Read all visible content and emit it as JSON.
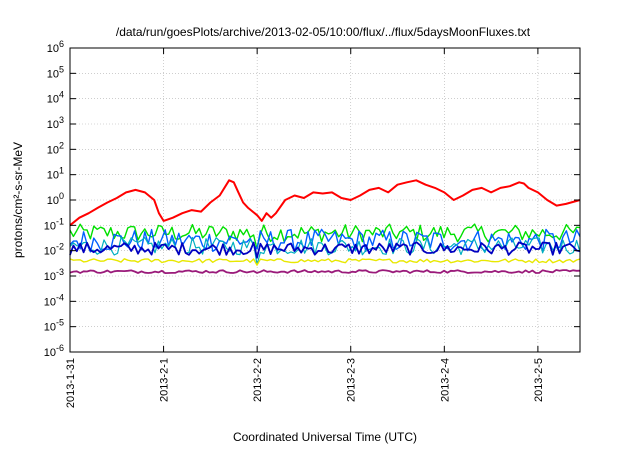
{
  "chart_data": {
    "type": "line",
    "title": "/data/run/goesPlots/archive/2013-02-05/10:00/flux/../flux/5daysMoonFluxes.txt",
    "xlabel": "Coordinated Universal Time (UTC)",
    "ylabel": "protons/cm²-s-sr-MeV",
    "yscale": "log",
    "ylim": [
      1e-06,
      1000000.0
    ],
    "xlim_days": [
      0,
      5.45
    ],
    "x_ticks": [
      {
        "label": "2013-1-31",
        "day": 0
      },
      {
        "label": "2013-2-1",
        "day": 1
      },
      {
        "label": "2013-2-2",
        "day": 2
      },
      {
        "label": "2013-2-3",
        "day": 3
      },
      {
        "label": "2013-2-4",
        "day": 4
      },
      {
        "label": "2013-2-5",
        "day": 5
      }
    ],
    "y_ticks": [
      {
        "value": 1e-06,
        "base": "10",
        "exp": "-6"
      },
      {
        "value": 1e-05,
        "base": "10",
        "exp": "-5"
      },
      {
        "value": 0.0001,
        "base": "10",
        "exp": "-4"
      },
      {
        "value": 0.001,
        "base": "10",
        "exp": "-3"
      },
      {
        "value": 0.01,
        "base": "10",
        "exp": "-2"
      },
      {
        "value": 0.1,
        "base": "10",
        "exp": "-1"
      },
      {
        "value": 1,
        "base": "10",
        "exp": "0"
      },
      {
        "value": 10.0,
        "base": "10",
        "exp": "1"
      },
      {
        "value": 100.0,
        "base": "10",
        "exp": "2"
      },
      {
        "value": 1000.0,
        "base": "10",
        "exp": "3"
      },
      {
        "value": 10000.0,
        "base": "10",
        "exp": "4"
      },
      {
        "value": 100000.0,
        "base": "10",
        "exp": "5"
      },
      {
        "value": 1000000.0,
        "base": "10",
        "exp": "6"
      }
    ],
    "grid": true,
    "legend": "none",
    "series": [
      {
        "color": "#ff0000",
        "width": 2,
        "x": [
          0,
          0.1,
          0.2,
          0.3,
          0.4,
          0.5,
          0.6,
          0.7,
          0.8,
          0.9,
          0.95,
          1.0,
          1.1,
          1.2,
          1.3,
          1.4,
          1.5,
          1.6,
          1.7,
          1.75,
          1.8,
          1.85,
          1.9,
          2.0,
          2.05,
          2.1,
          2.15,
          2.2,
          2.3,
          2.4,
          2.5,
          2.6,
          2.7,
          2.8,
          2.9,
          3.0,
          3.1,
          3.2,
          3.3,
          3.4,
          3.5,
          3.6,
          3.7,
          3.8,
          3.9,
          4.0,
          4.1,
          4.2,
          4.3,
          4.4,
          4.5,
          4.6,
          4.7,
          4.8,
          4.85,
          4.9,
          5.0,
          5.1,
          5.2,
          5.3,
          5.45
        ],
        "y": [
          0.1,
          0.2,
          0.3,
          0.5,
          0.8,
          1.2,
          2.0,
          2.5,
          2.0,
          1.0,
          0.3,
          0.15,
          0.2,
          0.3,
          0.4,
          0.35,
          0.8,
          1.5,
          6.0,
          5.0,
          2.0,
          0.8,
          0.5,
          0.25,
          0.15,
          0.3,
          0.2,
          0.3,
          1.0,
          1.5,
          1.2,
          2.0,
          1.8,
          2.0,
          1.2,
          1.0,
          1.5,
          2.5,
          3.0,
          2.0,
          4.0,
          5.0,
          6.0,
          4.0,
          3.0,
          2.0,
          1.0,
          1.5,
          2.5,
          3.0,
          2.0,
          3.0,
          3.5,
          5.0,
          4.5,
          3.0,
          2.0,
          1.0,
          0.6,
          0.7,
          1.0
        ]
      }
    ],
    "bands": [
      {
        "color": "#00e000",
        "center": 0.05,
        "amp": 0.35,
        "width": 1.4
      },
      {
        "color": "#0060ff",
        "center": 0.025,
        "amp": 0.45,
        "width": 1.4
      },
      {
        "color": "#00b0c0",
        "center": 0.015,
        "amp": 0.35,
        "width": 1.2
      },
      {
        "color": "#0000c0",
        "center": 0.012,
        "amp": 0.25,
        "width": 1.8
      },
      {
        "color": "#e8e800",
        "center": 0.004,
        "amp": 0.08,
        "width": 1.4
      },
      {
        "color": "#9a1a7a",
        "center": 0.0015,
        "amp": 0.06,
        "width": 1.8
      }
    ]
  }
}
